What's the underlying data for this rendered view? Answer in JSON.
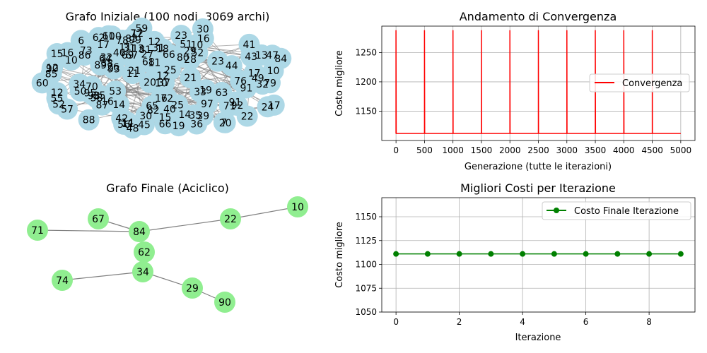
{
  "panels": {
    "initial_graph": {
      "title": "Grafo Iniziale (100 nodi, 3069 archi)",
      "node_color": "#add8e6",
      "edge_color": "#808080",
      "node_labels": [
        "69",
        "6",
        "78",
        "7",
        "77",
        "18",
        "80",
        "26",
        "36",
        "41",
        "91",
        "31",
        "82",
        "47",
        "98",
        "28",
        "97",
        "87",
        "17",
        "66",
        "55",
        "52",
        "90",
        "11",
        "21",
        "13",
        "27",
        "16",
        "52",
        "20",
        "72",
        "12",
        "65",
        "53",
        "10",
        "12",
        "73",
        "32",
        "50",
        "67",
        "60",
        "35",
        "43",
        "79",
        "46",
        "16",
        "45",
        "49",
        "39",
        "100",
        "10",
        "17",
        "63",
        "12",
        "56",
        "19",
        "58",
        "76",
        "12",
        "30",
        "16",
        "37",
        "15",
        "17",
        "11",
        "62",
        "68",
        "93",
        "31",
        "42",
        "14",
        "40",
        "92",
        "10",
        "85",
        "29",
        "34",
        "22",
        "10",
        "64",
        "19",
        "33",
        "23",
        "81",
        "14",
        "44",
        "24",
        "88",
        "25",
        "15",
        "66",
        "11",
        "30",
        "12",
        "83",
        "16",
        "25",
        "71",
        "70",
        "99",
        "89",
        "95",
        "38",
        "84",
        "32",
        "23",
        "91",
        "57",
        "21",
        "35",
        "20",
        "48",
        "59",
        "51",
        "61",
        "14",
        "86",
        "11",
        "13"
      ]
    },
    "convergence": {
      "title": "Andamento di Convergenza",
      "xlabel": "Generazione (tutte le iterazioni)",
      "ylabel": "Costo migliore",
      "legend": "Convergenza",
      "line_color": "#ff0000"
    },
    "final_graph": {
      "title": "Grafo Finale (Aciclico)",
      "node_color": "#90ee90",
      "edge_color": "#808080"
    },
    "iteration_costs": {
      "title": "Migliori Costi per Iterazione",
      "xlabel": "Iterazione",
      "ylabel": "Costo migliore",
      "legend": "Costo Finale Iterazione",
      "line_color": "#008000"
    }
  },
  "chart_data": [
    {
      "type": "network",
      "title": "Grafo Iniziale (100 nodi, 3069 archi)",
      "nodes": 100,
      "edges": 3069
    },
    {
      "type": "line",
      "title": "Andamento di Convergenza",
      "xlabel": "Generazione (tutte le iterazioni)",
      "ylabel": "Costo migliore",
      "xlim": [
        -250,
        5250
      ],
      "ylim": [
        1100,
        1295
      ],
      "xticks": [
        0,
        500,
        1000,
        1500,
        2000,
        2500,
        3000,
        3500,
        4000,
        4500,
        5000
      ],
      "yticks": [
        1150,
        1200,
        1250
      ],
      "grid": true,
      "legend_position": "right",
      "series": [
        {
          "name": "Convergenza",
          "x": [
            0,
            0,
            3,
            500,
            500,
            503,
            1000,
            1000,
            1003,
            1500,
            1500,
            1503,
            2000,
            2000,
            2003,
            2500,
            2500,
            2503,
            3000,
            3000,
            3003,
            3500,
            3500,
            3503,
            4000,
            4000,
            4003,
            4500,
            4500,
            4503,
            5000
          ],
          "y": [
            1112,
            1288,
            1112,
            1112,
            1288,
            1112,
            1112,
            1288,
            1112,
            1112,
            1288,
            1112,
            1112,
            1288,
            1112,
            1112,
            1288,
            1112,
            1112,
            1288,
            1112,
            1112,
            1288,
            1112,
            1112,
            1288,
            1112,
            1112,
            1288,
            1112,
            1112
          ]
        }
      ]
    },
    {
      "type": "network",
      "title": "Grafo Finale (Aciclico)",
      "nodes": [
        {
          "id": "10"
        },
        {
          "id": "22"
        },
        {
          "id": "84"
        },
        {
          "id": "67"
        },
        {
          "id": "71"
        },
        {
          "id": "62"
        },
        {
          "id": "34"
        },
        {
          "id": "74"
        },
        {
          "id": "29"
        },
        {
          "id": "90"
        }
      ],
      "edges": [
        [
          "10",
          "22"
        ],
        [
          "22",
          "84"
        ],
        [
          "84",
          "67"
        ],
        [
          "84",
          "71"
        ],
        [
          "84",
          "62"
        ],
        [
          "62",
          "34"
        ],
        [
          "34",
          "74"
        ],
        [
          "34",
          "29"
        ],
        [
          "29",
          "90"
        ]
      ]
    },
    {
      "type": "line",
      "title": "Migliori Costi per Iterazione",
      "xlabel": "Iterazione",
      "ylabel": "Costo migliore",
      "xlim": [
        -0.45,
        9.45
      ],
      "ylim": [
        1050,
        1170
      ],
      "xticks": [
        0,
        2,
        4,
        6,
        8
      ],
      "yticks": [
        1050,
        1075,
        1100,
        1125,
        1150
      ],
      "grid": true,
      "legend_position": "top-right",
      "series": [
        {
          "name": "Costo Finale Iterazione",
          "x": [
            0,
            1,
            2,
            3,
            4,
            5,
            6,
            7,
            8,
            9
          ],
          "values": [
            1111,
            1111,
            1111,
            1111,
            1111,
            1111,
            1111,
            1111,
            1111,
            1111
          ]
        }
      ]
    }
  ]
}
